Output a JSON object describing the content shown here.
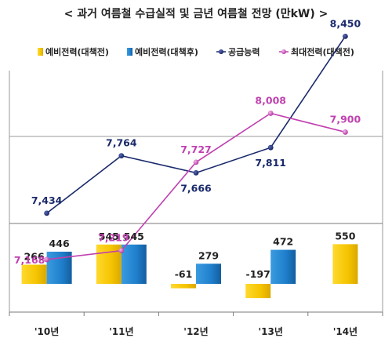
{
  "chart_data": {
    "type": "bar",
    "title": "< 과거 여름철 수급실적 및 금년 여름철 전망 (만kW) >",
    "categories": [
      "'10년",
      "'11년",
      "'12년",
      "'13년",
      "'14년"
    ],
    "legend_position": "top",
    "grid": true,
    "series": [
      {
        "name": "예비전력(대책전)",
        "type": "bar",
        "color": "#f5c400",
        "values": [
          266,
          545,
          -61,
          -197,
          550
        ]
      },
      {
        "name": "예비전력(대책후)",
        "type": "bar",
        "color": "#1f7fcc",
        "values": [
          446,
          545,
          279,
          472,
          null
        ]
      },
      {
        "name": "공급능력",
        "type": "line",
        "color": "#1a2a6c",
        "values": [
          7434,
          7764,
          7666,
          7811,
          8450
        ]
      },
      {
        "name": "최대전력(대책전)",
        "type": "line",
        "color": "#c040b0",
        "values": [
          7168,
          7219,
          7727,
          8008,
          7900
        ]
      }
    ]
  }
}
